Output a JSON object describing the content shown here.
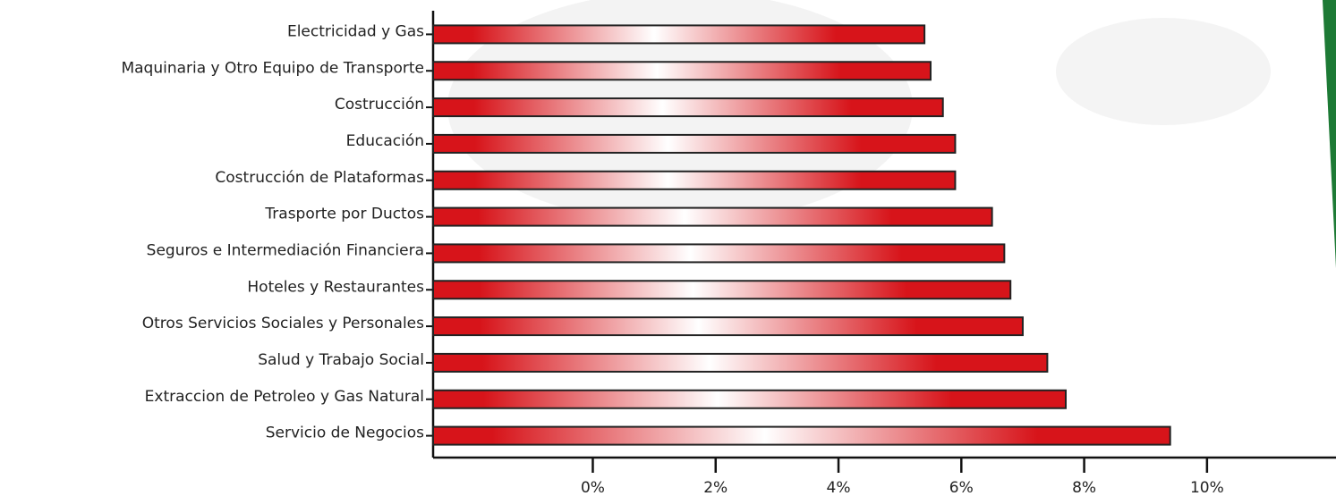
{
  "chart_data": {
    "type": "bar",
    "orientation": "horizontal",
    "categories": [
      "Electricidad y Gas",
      "Maquinaria y Otro Equipo de Transporte",
      "Costrucción",
      "Educación",
      "Costrucción de Plataformas",
      "Trasporte por Ductos",
      "Seguros e Intermediación Financiera",
      "Hoteles y Restaurantes",
      "Otros Servicios Sociales y Personales",
      "Salud y Trabajo Social",
      "Extraccion de Petroleo y Gas Natural",
      "Servicio de Negocios"
    ],
    "values": [
      5.4,
      5.5,
      5.7,
      5.9,
      5.9,
      6.5,
      6.7,
      6.8,
      7.0,
      7.4,
      7.7,
      9.4
    ],
    "color": "#d7141a",
    "xlim": [
      -2.6,
      12.1
    ],
    "xticks": [
      {
        "value": 0,
        "label": "0%"
      },
      {
        "value": 2,
        "label": "2%"
      },
      {
        "value": 4,
        "label": "4%"
      },
      {
        "value": 6,
        "label": "6%"
      },
      {
        "value": 8,
        "label": "8%"
      },
      {
        "value": 10,
        "label": "10%"
      }
    ]
  }
}
